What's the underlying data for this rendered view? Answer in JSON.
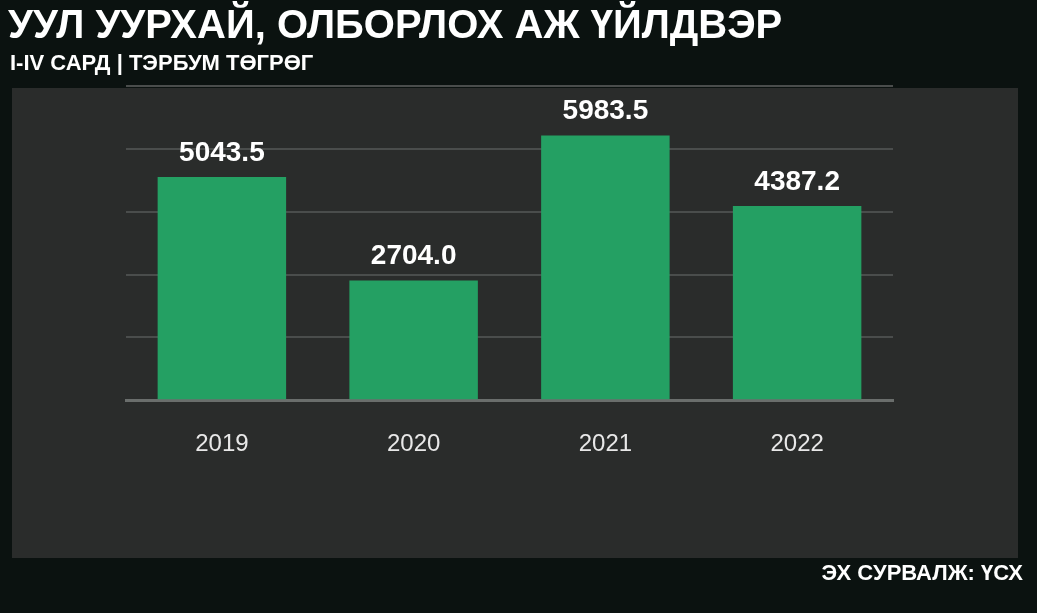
{
  "chart_data": {
    "type": "bar",
    "title": "УУЛ УУРХАЙ, ОЛБОРЛОХ АЖ ҮЙЛДВЭР",
    "subtitle": "I-IV САРД | ТЭРБУМ ТӨГРӨГ",
    "categories": [
      "2019",
      "2020",
      "2021",
      "2022"
    ],
    "values": [
      5043.5,
      2704.0,
      5983.5,
      4387.2
    ],
    "value_labels": [
      "5043.5",
      "2704.0",
      "5983.5",
      "4387.2"
    ],
    "color": "#24a063",
    "ylim": [
      0,
      7100
    ],
    "yticks": [
      {
        "value": 0,
        "label": null
      },
      {
        "value": 1420,
        "label": null
      },
      {
        "value": 2840,
        "label": null
      },
      {
        "value": 4260,
        "label": null
      },
      {
        "value": 5680,
        "label": null
      },
      {
        "value": 7100,
        "label": null
      }
    ],
    "tick_labels": "x",
    "grid": "y",
    "legend": false,
    "annotations": [
      "ЭХ СУРВАЛЖ: ҮСХ"
    ]
  }
}
